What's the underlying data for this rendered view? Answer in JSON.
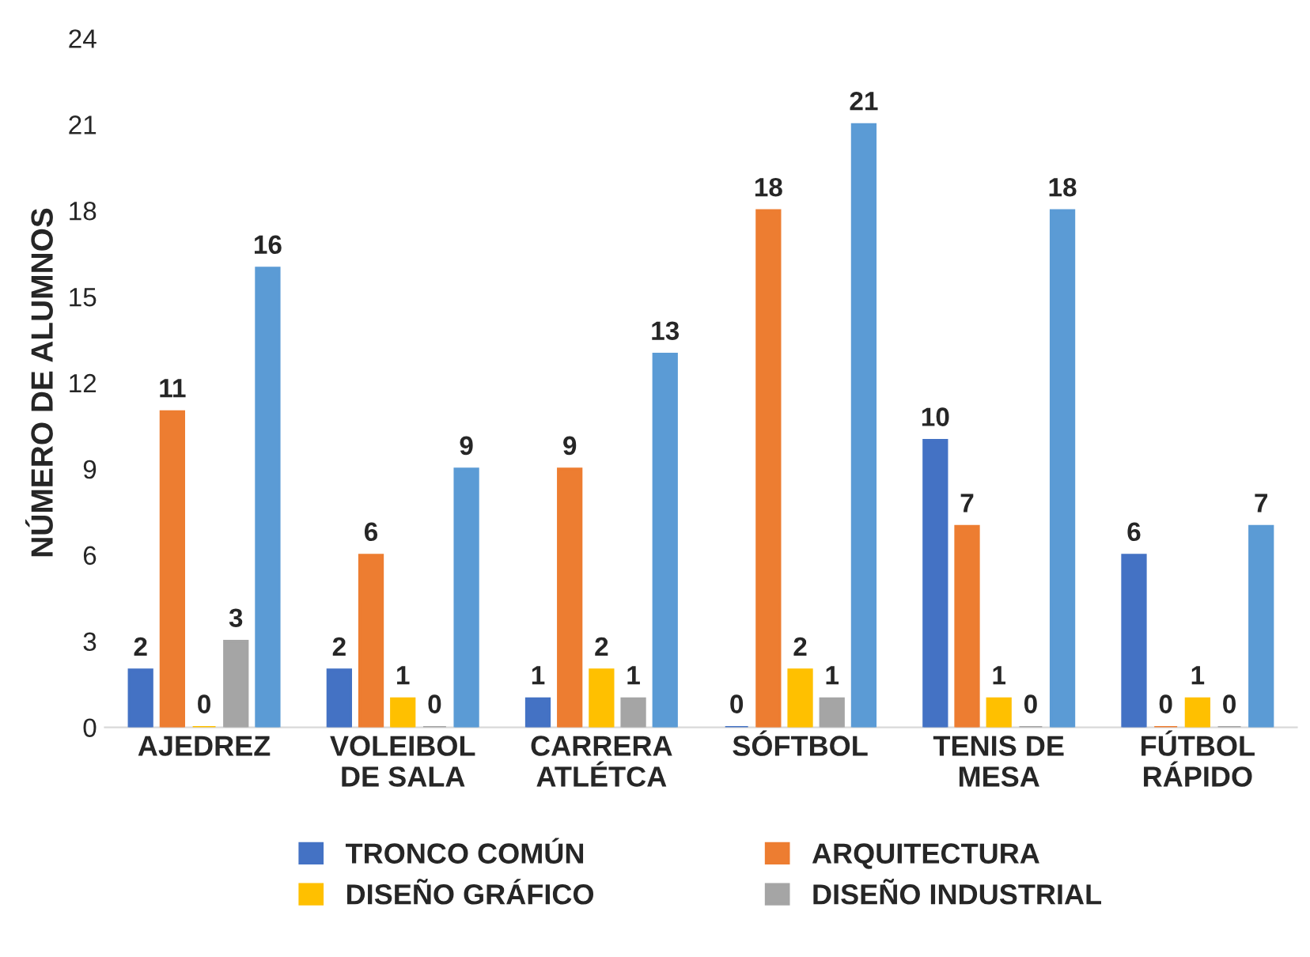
{
  "chart_data": {
    "type": "bar",
    "ylabel": "NÚMERO DE ALUMNOS",
    "categories": [
      "AJEDREZ",
      "VOLEIBOL\nDE SALA",
      "CARRERA\nATLÉTCA",
      "SÓFTBOL",
      "TENIS DE\nMESA",
      "FÚTBOL\nRÁPIDO"
    ],
    "series": [
      {
        "name": "TRONCO COMÚN",
        "color": "#4472c4",
        "values": [
          2,
          2,
          1,
          0,
          10,
          6
        ]
      },
      {
        "name": "ARQUITECTURA",
        "color": "#ed7d31",
        "values": [
          11,
          6,
          9,
          18,
          7,
          0
        ]
      },
      {
        "name": "DISEÑO GRÁFICO",
        "color": "#ffc000",
        "values": [
          0,
          1,
          2,
          2,
          1,
          1
        ]
      },
      {
        "name": "DISEÑO INDUSTRIAL",
        "color": "#a5a5a5",
        "values": [
          3,
          0,
          1,
          1,
          0,
          0
        ]
      },
      {
        "color": "#5b9bd5",
        "values": [
          16,
          9,
          13,
          21,
          18,
          7
        ]
      }
    ],
    "ylim": [
      0,
      24
    ],
    "yticks": [
      0,
      3,
      6,
      9,
      12,
      15,
      18,
      21,
      24
    ],
    "grid": false,
    "legend": "bottom",
    "data_labels": true
  }
}
